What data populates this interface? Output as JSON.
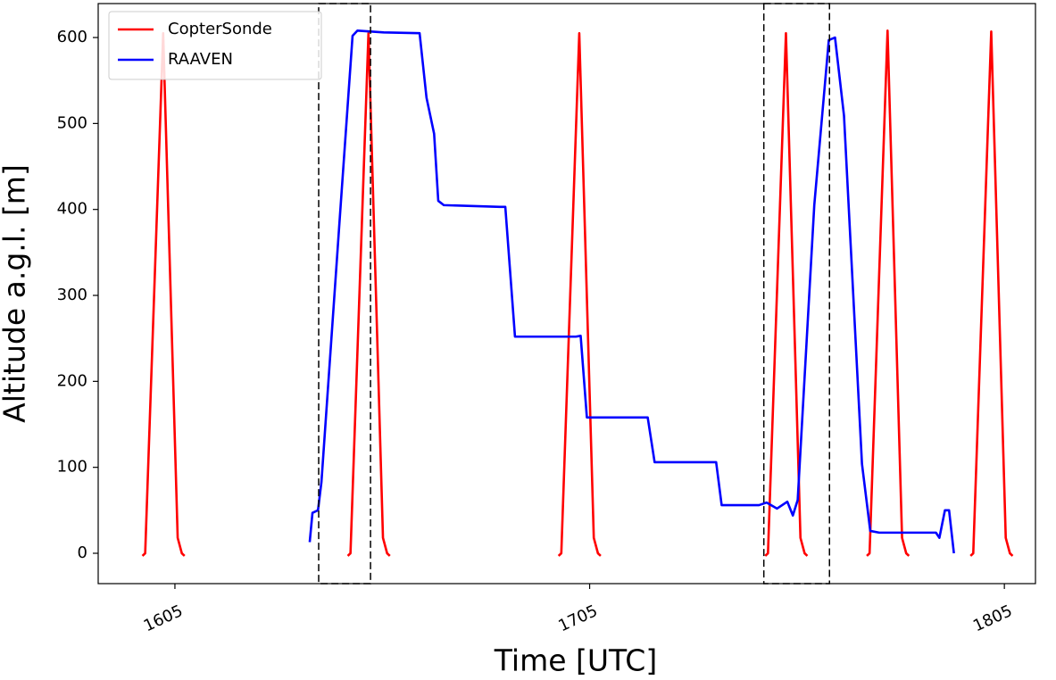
{
  "chart_data": {
    "type": "line",
    "xlabel": "Time [UTC]",
    "ylabel": "Altitude a.g.l. [m]",
    "xlim": [
      953.9,
      1089.5
    ],
    "ylim": [
      -35.3,
      639.5
    ],
    "xticks": [
      {
        "value": 965,
        "label": "1605"
      },
      {
        "value": 1025,
        "label": "1705"
      },
      {
        "value": 1085,
        "label": "1805"
      }
    ],
    "yticks": [
      0,
      100,
      200,
      300,
      400,
      500,
      600
    ],
    "legend": "upper left",
    "boxes": [
      [
        985.8,
        993.3
      ],
      [
        1050.2,
        1059.7
      ]
    ],
    "series": [
      {
        "name": "CopterSonde",
        "color": "#ff0000",
        "x": [
          960.3,
          960.7,
          963.3,
          965.4,
          966.0,
          966.4,
          978,
          990.0,
          990.4,
          993.0,
          995.1,
          995.7,
          996.1,
          1008,
          1020.5,
          1020.9,
          1023.5,
          1025.6,
          1026.2,
          1026.6,
          1038,
          1050.4,
          1050.8,
          1053.4,
          1055.5,
          1056.1,
          1056.5,
          1061,
          1065.1,
          1065.5,
          1068.1,
          1070.2,
          1070.8,
          1071.2,
          1076,
          1080.1,
          1080.5,
          1083.1,
          1085.2,
          1085.8,
          1086.2
        ],
        "values": [
          -3,
          0,
          605,
          18,
          0,
          -3,
          null,
          -3,
          0,
          605,
          18,
          0,
          -3,
          null,
          -3,
          0,
          605,
          18,
          0,
          -3,
          null,
          -3,
          0,
          605,
          18,
          0,
          -3,
          null,
          -3,
          0,
          608,
          18,
          0,
          -3,
          null,
          -3,
          0,
          607,
          18,
          0,
          -3
        ]
      },
      {
        "name": "RAAVEN",
        "color": "#0000ff",
        "x": [
          984.5,
          984.9,
          985.7,
          986.2,
          988.8,
          990.7,
          991.4,
          993.3,
          995.2,
          1000.4,
          1001.4,
          1002.5,
          1003.1,
          1003.9,
          1012.0,
          1012.8,
          1014.2,
          1023.0,
          1023.7,
          1024.6,
          1033.4,
          1034.4,
          1043.3,
          1044.1,
          1049.5,
          1050.6,
          1052.1,
          1053.6,
          1054.4,
          1055.1,
          1057.5,
          1059.6,
          1060.5,
          1061.8,
          1064.4,
          1065.6,
          1066.9,
          1075.1,
          1075.6,
          1076.4,
          1077.0,
          1077.7
        ],
        "values": [
          13,
          47,
          50,
          83,
          384,
          602,
          608,
          607,
          606,
          605,
          530,
          488,
          410,
          405,
          403,
          403,
          252,
          252,
          253,
          158,
          158,
          106,
          106,
          56,
          56,
          59,
          52,
          60,
          44,
          62,
          405,
          597,
          600,
          509,
          104,
          26,
          24,
          24,
          18,
          50,
          50,
          0
        ]
      }
    ]
  }
}
